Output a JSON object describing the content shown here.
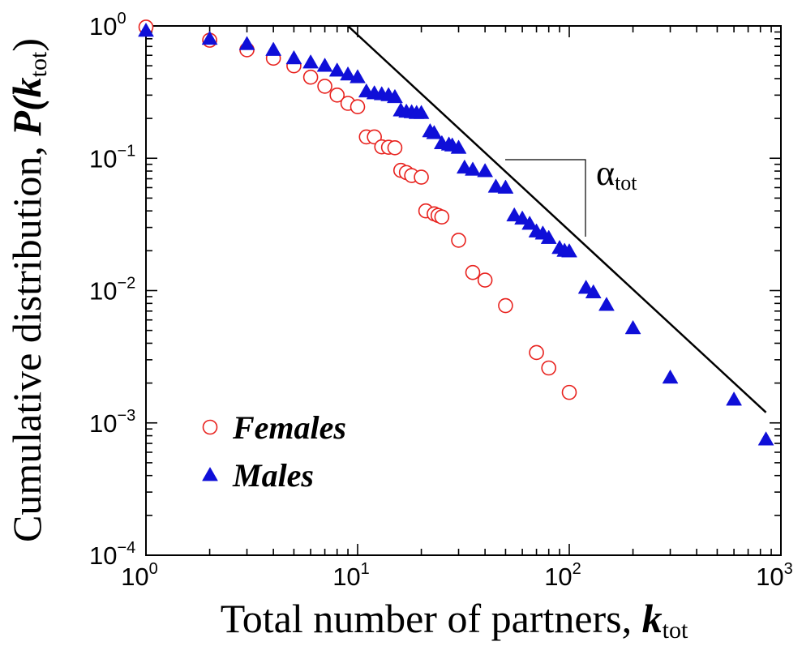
{
  "chart_data": {
    "type": "scatter",
    "x_scale": "log",
    "y_scale": "log",
    "xlim": [
      1,
      1000
    ],
    "ylim": [
      0.0001,
      1
    ],
    "grid": false,
    "legend_position": "bottom-left",
    "xlabel": {
      "text": "Total number of partners, ",
      "symbol": "k",
      "subscript": "tot"
    },
    "ylabel": {
      "text": "Cumulative distribution, ",
      "symbol": "P(k",
      "subscript": "tot",
      "close": ")"
    },
    "x_ticks": [
      {
        "base": "10",
        "exp": "0",
        "value": 1
      },
      {
        "base": "10",
        "exp": "1",
        "value": 10
      },
      {
        "base": "10",
        "exp": "2",
        "value": 100
      },
      {
        "base": "10",
        "exp": "3",
        "value": 1000
      }
    ],
    "y_ticks": [
      {
        "base": "10",
        "exp": "0",
        "value": 1
      },
      {
        "base": "10",
        "exp": "−1",
        "value": 0.1
      },
      {
        "base": "10",
        "exp": "−2",
        "value": 0.01
      },
      {
        "base": "10",
        "exp": "−3",
        "value": 0.001
      },
      {
        "base": "10",
        "exp": "−4",
        "value": 0.0001
      }
    ],
    "series": [
      {
        "name": "Females",
        "marker": "open-circle",
        "color": "#e8221e",
        "x": [
          1,
          2,
          3,
          4,
          5,
          6,
          7,
          8,
          9,
          10,
          11,
          12,
          13,
          14,
          15,
          16,
          17,
          18,
          20,
          21,
          23,
          24,
          25,
          30,
          35,
          40,
          50,
          70,
          80,
          100
        ],
        "y": [
          0.98,
          0.78,
          0.66,
          0.57,
          0.5,
          0.41,
          0.35,
          0.3,
          0.26,
          0.245,
          0.145,
          0.145,
          0.122,
          0.121,
          0.12,
          0.081,
          0.078,
          0.074,
          0.072,
          0.04,
          0.038,
          0.037,
          0.036,
          0.024,
          0.0137,
          0.012,
          0.0077,
          0.0034,
          0.0026,
          0.0017
        ]
      },
      {
        "name": "Males",
        "marker": "filled-triangle",
        "color": "#0f0fd8",
        "x": [
          1,
          2,
          3,
          4,
          5,
          6,
          7,
          8,
          9,
          10,
          11,
          12,
          13,
          14,
          15,
          16,
          17,
          18,
          19,
          20,
          22,
          23,
          25,
          27,
          28,
          30,
          32,
          35,
          40,
          45,
          50,
          55,
          60,
          65,
          70,
          75,
          80,
          90,
          95,
          100,
          120,
          130,
          150,
          200,
          300,
          600,
          850
        ],
        "y": [
          0.92,
          0.8,
          0.73,
          0.66,
          0.57,
          0.53,
          0.5,
          0.46,
          0.43,
          0.41,
          0.32,
          0.31,
          0.305,
          0.3,
          0.29,
          0.23,
          0.225,
          0.223,
          0.22,
          0.22,
          0.16,
          0.155,
          0.13,
          0.127,
          0.125,
          0.12,
          0.085,
          0.082,
          0.08,
          0.061,
          0.06,
          0.037,
          0.035,
          0.032,
          0.028,
          0.027,
          0.025,
          0.021,
          0.02,
          0.0198,
          0.0105,
          0.0097,
          0.0078,
          0.0052,
          0.0022,
          0.0015,
          0.00075
        ]
      }
    ],
    "fit_line": {
      "x": [
        9,
        850
      ],
      "y": [
        1,
        0.0012
      ]
    },
    "slope_annotation": {
      "symbol": "α",
      "subscript": "tot"
    }
  }
}
